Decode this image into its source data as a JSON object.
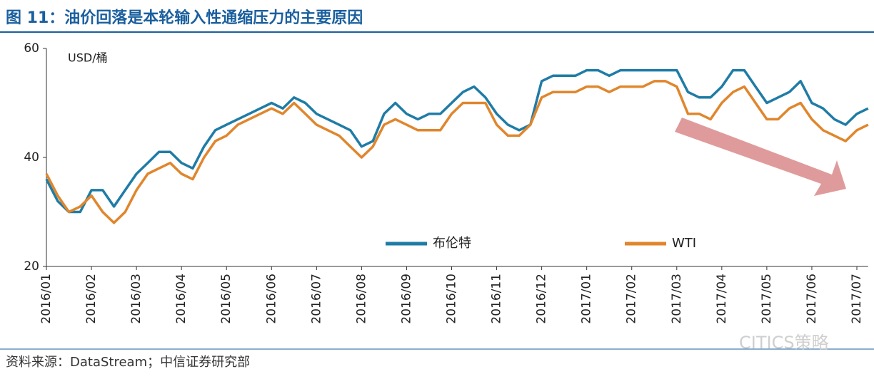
{
  "title": "图 11：油价回落是本轮输入性通缩压力的主要原因",
  "source": "资料来源：DataStream；中信证券研究部",
  "watermark": "CITICS策略",
  "chart_data": {
    "type": "line",
    "annotation": "USD/桶",
    "categories": [
      "2016/01",
      null,
      null,
      null,
      "2016/02",
      null,
      null,
      null,
      "2016/03",
      null,
      null,
      null,
      "2016/04",
      null,
      null,
      null,
      "2016/05",
      null,
      null,
      null,
      "2016/06",
      null,
      null,
      null,
      "2016/07",
      null,
      null,
      null,
      "2016/08",
      null,
      null,
      null,
      "2016/09",
      null,
      null,
      null,
      "2016/10",
      null,
      null,
      null,
      "2016/11",
      null,
      null,
      null,
      "2016/12",
      null,
      null,
      null,
      "2017/01",
      null,
      null,
      null,
      "2017/02",
      null,
      null,
      null,
      "2017/03",
      null,
      null,
      null,
      "2017/04",
      null,
      null,
      null,
      "2017/05",
      null,
      null,
      null,
      "2017/06",
      null,
      null,
      null,
      "2017/07",
      null
    ],
    "series": [
      {
        "name": "布伦特",
        "color": "#1f7ca6",
        "values": [
          36,
          32,
          30,
          30,
          34,
          34,
          31,
          34,
          37,
          39,
          41,
          41,
          39,
          38,
          42,
          45,
          46,
          47,
          48,
          49,
          50,
          49,
          51,
          50,
          48,
          47,
          46,
          45,
          42,
          43,
          48,
          50,
          48,
          47,
          48,
          48,
          50,
          52,
          53,
          51,
          48,
          46,
          45,
          46,
          54,
          55,
          55,
          55,
          56,
          56,
          55,
          56,
          56,
          56,
          56,
          56,
          56,
          52,
          51,
          51,
          53,
          56,
          56,
          53,
          50,
          51,
          52,
          54,
          50,
          49,
          47,
          46,
          48,
          49
        ]
      },
      {
        "name": "WTI",
        "color": "#e0862c",
        "values": [
          37,
          33,
          30,
          31,
          33,
          30,
          28,
          30,
          34,
          37,
          38,
          39,
          37,
          36,
          40,
          43,
          44,
          46,
          47,
          48,
          49,
          48,
          50,
          48,
          46,
          45,
          44,
          42,
          40,
          42,
          46,
          47,
          46,
          45,
          45,
          45,
          48,
          50,
          50,
          50,
          46,
          44,
          44,
          46,
          51,
          52,
          52,
          52,
          53,
          53,
          52,
          53,
          53,
          53,
          54,
          54,
          53,
          48,
          48,
          47,
          50,
          52,
          53,
          50,
          47,
          47,
          49,
          50,
          47,
          45,
          44,
          43,
          45,
          46
        ]
      }
    ],
    "ylim": [
      20,
      60
    ],
    "yticks": [
      20,
      40,
      60
    ],
    "grid": false
  }
}
